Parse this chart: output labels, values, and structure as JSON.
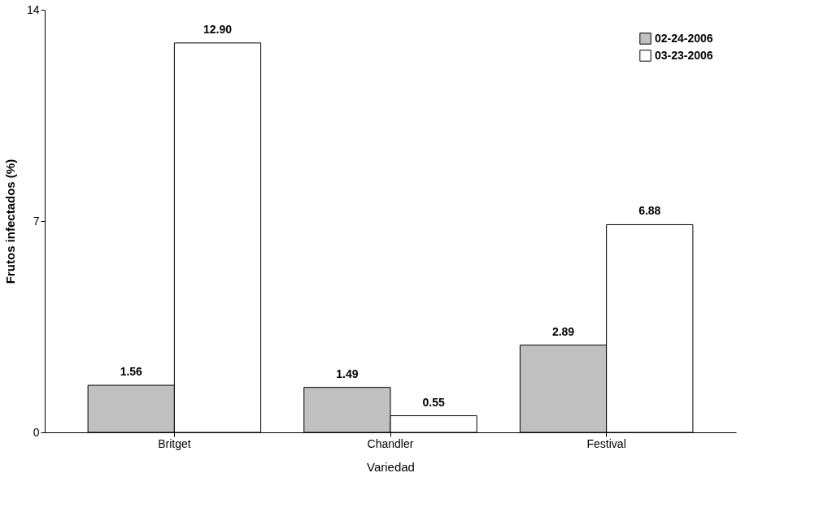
{
  "chart_data": {
    "type": "bar",
    "xlabel": "Variedad",
    "ylabel": "Frutos infectados (%)",
    "categories": [
      "Britget",
      "Chandler",
      "Festival"
    ],
    "series": [
      {
        "name": "02-24-2006",
        "color": "#c0c0c0",
        "values": [
          1.56,
          1.49,
          2.89
        ],
        "value_labels": [
          "1.56",
          "1.49",
          "2.89"
        ]
      },
      {
        "name": "03-23-2006",
        "color": "#ffffff",
        "values": [
          12.9,
          0.55,
          6.88
        ],
        "value_labels": [
          "12.90",
          "0.55",
          "6.88"
        ]
      }
    ],
    "ylim": [
      0,
      14
    ],
    "yticks": [
      0,
      7,
      14
    ],
    "grid": false,
    "legend": "top right"
  }
}
